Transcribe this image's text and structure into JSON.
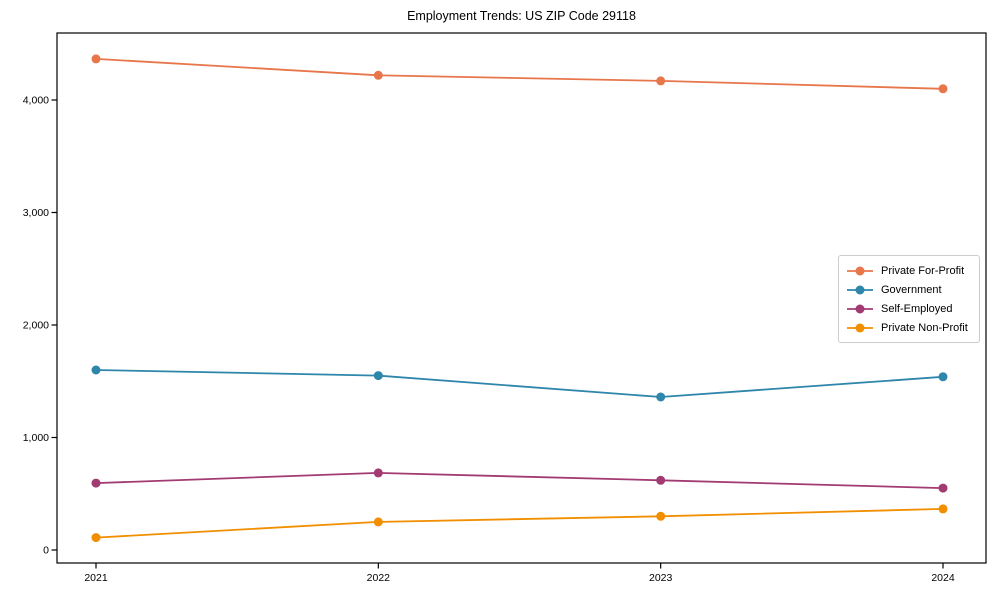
{
  "title": "Employment Trends: US ZIP Code 29118",
  "chart_data": {
    "type": "line",
    "x": [
      2021,
      2022,
      2023,
      2024
    ],
    "xtick_labels": [
      "2021",
      "2022",
      "2023",
      "2024"
    ],
    "yticks": [
      0,
      1000,
      2000,
      3000,
      4000
    ],
    "ytick_labels": [
      "0",
      "1,000",
      "2,000",
      "3,000",
      "4,000"
    ],
    "ylim": [
      -116,
      4596
    ],
    "grid": false,
    "legend_position": "center right",
    "series": [
      {
        "name": "Private For-Profit",
        "color": "#E8764B",
        "values": [
          4365,
          4220,
          4170,
          4100
        ]
      },
      {
        "name": "Government",
        "color": "#2E86AB",
        "values": [
          1600,
          1550,
          1360,
          1540
        ]
      },
      {
        "name": "Self-Employed",
        "color": "#A23B72",
        "values": [
          595,
          685,
          620,
          550
        ]
      },
      {
        "name": "Private Non-Profit",
        "color": "#F18F01",
        "values": [
          110,
          250,
          300,
          365
        ]
      }
    ],
    "axis_color": "#000000",
    "background_color": "#ffffff"
  }
}
